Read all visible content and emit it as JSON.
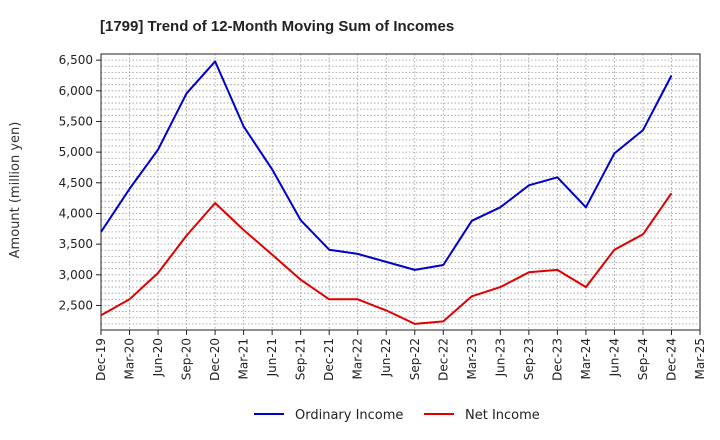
{
  "chart_data": {
    "type": "line",
    "title": "[1799]  Trend of 12-Month Moving Sum of Incomes",
    "xlabel": "",
    "ylabel": "Amount (million yen)",
    "ylim": [
      2100,
      6600
    ],
    "yticks": [
      2500,
      3000,
      3500,
      4000,
      4500,
      5000,
      5500,
      6000,
      6500
    ],
    "ytick_labels": [
      "2,500",
      "3,000",
      "3,500",
      "4,000",
      "4,500",
      "5,000",
      "5,500",
      "6,000",
      "6,500"
    ],
    "categories": [
      "Dec-19",
      "Mar-20",
      "Jun-20",
      "Sep-20",
      "Dec-20",
      "Mar-21",
      "Jun-21",
      "Sep-21",
      "Dec-21",
      "Mar-22",
      "Jun-22",
      "Sep-22",
      "Dec-22",
      "Mar-23",
      "Jun-23",
      "Sep-23",
      "Dec-23",
      "Mar-24",
      "Jun-24",
      "Sep-24",
      "Dec-24",
      "Mar-25"
    ],
    "grid": true,
    "legend_position": "bottom-center",
    "series": [
      {
        "name": "Ordinary Income",
        "color": "#0000cc",
        "values": [
          3700,
          4400,
          5040,
          5960,
          6480,
          5420,
          4720,
          3890,
          3410,
          3340,
          3210,
          3080,
          3160,
          3880,
          4100,
          4460,
          4590,
          4100,
          4980,
          5360,
          6250,
          null
        ]
      },
      {
        "name": "Net Income",
        "color": "#e00000",
        "values": [
          2340,
          2600,
          3030,
          3640,
          4170,
          3730,
          3330,
          2920,
          2600,
          2600,
          2420,
          2200,
          2240,
          2650,
          2800,
          3040,
          3080,
          2800,
          3410,
          3660,
          4330,
          null
        ]
      }
    ]
  }
}
